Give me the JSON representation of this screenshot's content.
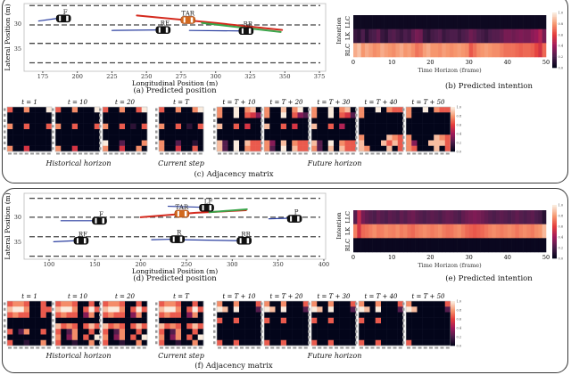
{
  "panels": [
    {
      "position_caption": "(a) Predicted position",
      "intention_caption": "(b) Predicted intention",
      "adjacency_caption": "(c) Adjacency matrix",
      "historical_label": "Historical horizon",
      "current_label": "Current step",
      "future_label": "Future horizon"
    },
    {
      "position_caption": "(d) Predicted position",
      "intention_caption": "(e) Predicted intention",
      "adjacency_caption": "(f) Adjacency matrix",
      "historical_label": "Historical horizon",
      "current_label": "Current step",
      "future_label": "Future horizon"
    }
  ],
  "colors": {
    "history": "#2b3fa0",
    "pred_red": "#d42a1e",
    "pred_orange": "#f06a1a",
    "pred_green": "#3aa54a",
    "target": "#d2691e",
    "lane": "#444444"
  },
  "chart_data": [
    {
      "type": "scatter",
      "title": "(a) Predicted position",
      "xlabel": "Longitudinal Position (m)",
      "ylabel": "Lateral Position (m)",
      "xlim": [
        161.5,
        379.5
      ],
      "ylim": [
        25.9,
        39.5
      ],
      "xticks": [
        "175",
        "200",
        "225",
        "250",
        "275",
        "300",
        "325",
        "350",
        "375"
      ],
      "yticks": [
        "30",
        "35"
      ],
      "lanes": [
        26.3,
        30.2,
        33.9,
        37.8
      ],
      "trajectories": [
        {
          "kind": "history",
          "points": [
            [
              172,
              29.4
            ],
            [
              185,
              28.9
            ]
          ]
        },
        {
          "kind": "history",
          "points": [
            [
              225,
              31.3
            ],
            [
              258,
              31.2
            ]
          ]
        },
        {
          "kind": "history",
          "points": [
            [
              281,
              31.3
            ],
            [
              318,
              31.4
            ]
          ]
        },
        {
          "kind": "pred_red",
          "points": [
            [
              243,
              28.3
            ],
            [
              300,
              29.8
            ],
            [
              348,
              31.2
            ]
          ]
        },
        {
          "kind": "pred_green",
          "points": [
            [
              290,
              29.8
            ],
            [
              347,
              31.6
            ]
          ]
        }
      ],
      "vehicles": [
        {
          "label": "F",
          "x": 190,
          "y": 28.9,
          "target": false
        },
        {
          "label": "TAR",
          "x": 280,
          "y": 29.2,
          "target": true
        },
        {
          "label": "RF",
          "x": 262,
          "y": 31.2,
          "target": false
        },
        {
          "label": "RR",
          "x": 322,
          "y": 31.4,
          "target": false
        }
      ]
    },
    {
      "type": "heatmap",
      "title": "(b) Predicted intention",
      "xlabel": "Time Horizon (frame)",
      "ylabel": "Intention",
      "rows": [
        "LLC",
        "LK",
        "RLC"
      ],
      "xticks": [
        "0",
        "10",
        "20",
        "30",
        "40",
        "50"
      ],
      "xlim": [
        0,
        50
      ],
      "colorbar_ticks": [
        "0.0",
        "0.2",
        "0.4",
        "0.6",
        "0.8",
        "1.0"
      ],
      "values": [
        [
          0.03,
          0.03,
          0.03,
          0.03,
          0.03,
          0.03,
          0.03,
          0.03,
          0.03,
          0.03,
          0.03,
          0.03,
          0.03,
          0.03,
          0.03,
          0.03,
          0.03,
          0.03,
          0.03,
          0.03,
          0.03,
          0.03,
          0.03,
          0.03,
          0.03,
          0.03,
          0.03,
          0.03,
          0.03,
          0.03,
          0.03,
          0.03,
          0.03,
          0.03,
          0.03,
          0.03,
          0.03,
          0.03,
          0.03,
          0.03,
          0.03,
          0.03,
          0.03,
          0.03,
          0.03,
          0.03,
          0.03,
          0.03,
          0.03,
          0.03
        ],
        [
          0.15,
          0.12,
          0.2,
          0.1,
          0.18,
          0.2,
          0.25,
          0.15,
          0.12,
          0.2,
          0.22,
          0.18,
          0.15,
          0.2,
          0.17,
          0.25,
          0.3,
          0.28,
          0.15,
          0.12,
          0.18,
          0.2,
          0.22,
          0.15,
          0.18,
          0.2,
          0.2,
          0.16,
          0.2,
          0.22,
          0.28,
          0.25,
          0.2,
          0.18,
          0.15,
          0.2,
          0.22,
          0.22,
          0.25,
          0.3,
          0.3,
          0.28,
          0.3,
          0.32,
          0.3,
          0.3,
          0.35,
          0.38,
          0.45,
          0.3
        ],
        [
          0.85,
          0.9,
          0.8,
          0.85,
          0.82,
          0.78,
          0.8,
          0.85,
          0.82,
          0.8,
          0.78,
          0.82,
          0.85,
          0.8,
          0.82,
          0.78,
          0.72,
          0.75,
          0.82,
          0.85,
          0.8,
          0.8,
          0.78,
          0.82,
          0.8,
          0.78,
          0.8,
          0.82,
          0.8,
          0.78,
          0.66,
          0.72,
          0.78,
          0.8,
          0.82,
          0.8,
          0.78,
          0.78,
          0.75,
          0.72,
          0.72,
          0.72,
          0.7,
          0.68,
          0.7,
          0.7,
          0.68,
          0.62,
          0.55,
          0.7
        ]
      ]
    },
    {
      "type": "heatmap",
      "title": "(c) Adjacency matrix",
      "colorbar_ticks": [
        "0.0",
        "0.2",
        "0.4",
        "0.6",
        "0.8",
        "1.0"
      ],
      "matrices": [
        {
          "title": "t = 1",
          "rows": [
            "60070009",
            "00000000",
            "00000000",
            "70060006",
            "00000000",
            "00000000",
            "00000000",
            "70050000"
          ]
        },
        {
          "title": "t = 10",
          "rows": [
            "60070009",
            "00000000",
            "00000000",
            "70060006",
            "00000000",
            "00000000",
            "00000000",
            "70050000"
          ]
        },
        {
          "title": "t = 20",
          "rows": [
            "60070069",
            "00000000",
            "00000000",
            "70060106",
            "00000000",
            "00000000",
            "90020007",
            "70050070"
          ]
        },
        {
          "title": "t = T",
          "rows": [
            "60070079",
            "00000000",
            "00000000",
            "70060106",
            "00000000",
            "00000000",
            "70020010",
            "70050060"
          ]
        },
        {
          "title": "t = T + 10",
          "rows": [
            "70090780",
            "70090653",
            "00000000",
            "80060500",
            "00000000",
            "00000000",
            "82090866",
            "82090766"
          ]
        },
        {
          "title": "t = T + 20",
          "rows": [
            "70080790",
            "70090632",
            "00000000",
            "80060500",
            "00000000",
            "00000000",
            "73080766",
            "72090866"
          ]
        },
        {
          "title": "t = T + 30",
          "rows": [
            "70090780",
            "70090652",
            "00000000",
            "80060400",
            "00000000",
            "00000000",
            "82090766",
            "72080866"
          ]
        },
        {
          "title": "t = T + 40",
          "rows": [
            "70090766",
            "70000000",
            "00000000",
            "00000000",
            "00000000",
            "70000876",
            "80008686",
            "87000806"
          ]
        },
        {
          "title": "t = T + 50",
          "rows": [
            "70090766",
            "70000000",
            "00000000",
            "00000000",
            "00000000",
            "70000876",
            "73008886",
            "76000806"
          ]
        }
      ]
    },
    {
      "type": "scatter",
      "title": "(d) Predicted position",
      "xlabel": "Longitudinal Position (m)",
      "ylabel": "Lateral Position (m)",
      "xlim": [
        72.7,
        402
      ],
      "ylim": [
        25.2,
        38.4
      ],
      "xticks": [
        "100",
        "150",
        "200",
        "250",
        "300",
        "350",
        "400"
      ],
      "yticks": [
        "30",
        "35"
      ],
      "lanes": [
        26.2,
        30.0,
        33.9,
        37.8
      ],
      "trajectories": [
        {
          "kind": "history",
          "points": [
            [
              230,
              27.8
            ],
            [
              267,
              28.0
            ]
          ]
        },
        {
          "kind": "history",
          "points": [
            [
              113,
              30.7
            ],
            [
              150,
              30.7
            ]
          ]
        },
        {
          "kind": "history",
          "points": [
            [
              340,
              30.3
            ],
            [
              362,
              30.2
            ]
          ]
        },
        {
          "kind": "history",
          "points": [
            [
              105,
              34.9
            ],
            [
              128,
              34.7
            ]
          ]
        },
        {
          "kind": "history",
          "points": [
            [
              212,
              34.5
            ],
            [
              235,
              34.4
            ]
          ]
        },
        {
          "kind": "history",
          "points": [
            [
              245,
              34.5
            ],
            [
              308,
              34.7
            ]
          ]
        },
        {
          "kind": "pred_red",
          "points": [
            [
              200,
              30.0
            ],
            [
              260,
              29.1
            ],
            [
              315,
              28.6
            ]
          ]
        },
        {
          "kind": "pred_green",
          "points": [
            [
              275,
              29.0
            ],
            [
              316,
              28.4
            ]
          ]
        }
      ],
      "vehicles": [
        {
          "label": "LF",
          "x": 272,
          "y": 28.1,
          "target": false
        },
        {
          "label": "TAR",
          "x": 245,
          "y": 29.3,
          "target": true
        },
        {
          "label": "F",
          "x": 155,
          "y": 30.7,
          "target": false
        },
        {
          "label": "P",
          "x": 368,
          "y": 30.3,
          "target": false
        },
        {
          "label": "RF",
          "x": 135,
          "y": 34.7,
          "target": false
        },
        {
          "label": "R",
          "x": 240,
          "y": 34.4,
          "target": false
        },
        {
          "label": "RR",
          "x": 313,
          "y": 34.7,
          "target": false
        }
      ]
    },
    {
      "type": "heatmap",
      "title": "(e) Predicted intention",
      "xlabel": "Time Horizon (frame)",
      "ylabel": "Intention",
      "rows": [
        "LLC",
        "LK",
        "RLC"
      ],
      "xticks": [
        "0",
        "10",
        "20",
        "30",
        "40",
        "50"
      ],
      "xlim": [
        0,
        50
      ],
      "colorbar_ticks": [
        "0.0",
        "0.2",
        "0.4",
        "0.6",
        "0.8",
        "1.0"
      ],
      "values": [
        [
          0.22,
          0.5,
          0.3,
          0.25,
          0.22,
          0.2,
          0.25,
          0.22,
          0.2,
          0.24,
          0.22,
          0.2,
          0.25,
          0.22,
          0.26,
          0.28,
          0.24,
          0.22,
          0.2,
          0.22,
          0.24,
          0.22,
          0.2,
          0.24,
          0.26,
          0.25,
          0.22,
          0.2,
          0.25,
          0.28,
          0.3,
          0.32,
          0.3,
          0.28,
          0.25,
          0.22,
          0.2,
          0.22,
          0.24,
          0.22,
          0.2,
          0.22,
          0.25,
          0.22,
          0.2,
          0.22,
          0.24,
          0.2,
          0.18,
          0.1
        ],
        [
          0.75,
          0.55,
          0.7,
          0.72,
          0.75,
          0.78,
          0.74,
          0.75,
          0.78,
          0.76,
          0.75,
          0.78,
          0.74,
          0.76,
          0.72,
          0.7,
          0.74,
          0.76,
          0.78,
          0.76,
          0.74,
          0.76,
          0.78,
          0.74,
          0.72,
          0.73,
          0.76,
          0.78,
          0.74,
          0.7,
          0.68,
          0.66,
          0.68,
          0.7,
          0.73,
          0.76,
          0.78,
          0.76,
          0.74,
          0.76,
          0.78,
          0.76,
          0.73,
          0.76,
          0.78,
          0.76,
          0.74,
          0.78,
          0.8,
          0.88
        ],
        [
          0.02,
          0.02,
          0.02,
          0.02,
          0.02,
          0.02,
          0.02,
          0.02,
          0.02,
          0.02,
          0.02,
          0.02,
          0.02,
          0.02,
          0.02,
          0.02,
          0.02,
          0.02,
          0.02,
          0.02,
          0.02,
          0.02,
          0.02,
          0.02,
          0.02,
          0.02,
          0.02,
          0.02,
          0.02,
          0.02,
          0.02,
          0.02,
          0.02,
          0.02,
          0.02,
          0.02,
          0.02,
          0.02,
          0.02,
          0.02,
          0.02,
          0.02,
          0.02,
          0.02,
          0.02,
          0.02,
          0.02,
          0.02,
          0.02,
          0.02
        ]
      ]
    },
    {
      "type": "heatmap",
      "title": "(f) Adjacency matrix",
      "colorbar_ticks": [
        "0.0",
        "0.2",
        "0.4",
        "0.6",
        "0.8",
        "1.0"
      ],
      "matrices": [
        {
          "title": "t = 1",
          "rows": [
            "67760060",
            "89970066",
            "67660060",
            "00000000",
            "00000000",
            "60270060",
            "00000000",
            "60010070"
          ]
        },
        {
          "title": "t = 10",
          "rows": [
            "67760060",
            "89970696",
            "67660370",
            "00000000",
            "86760686",
            "60270060",
            "70370609",
            "60010070"
          ]
        },
        {
          "title": "t = 20",
          "rows": [
            "67760060",
            "89970696",
            "67660370",
            "00000000",
            "86760686",
            "60270060",
            "70370609",
            "60010070"
          ]
        },
        {
          "title": "t = T",
          "rows": [
            "67760060",
            "89970696",
            "67660370",
            "00000000",
            "86760686",
            "60270060",
            "70370609",
            "60010070"
          ]
        },
        {
          "title": "t = T + 10",
          "rows": [
            "70070006",
            "98090002",
            "00000000",
            "60060000",
            "00000000",
            "00000000",
            "00000000",
            "60060000"
          ]
        },
        {
          "title": "t = T + 20",
          "rows": [
            "70070006",
            "98090002",
            "00000000",
            "60060000",
            "00000000",
            "00000000",
            "00000000",
            "60060000"
          ]
        },
        {
          "title": "t = T + 30",
          "rows": [
            "70070006",
            "98090002",
            "00000000",
            "60060000",
            "00000000",
            "00000000",
            "00000000",
            "60060000"
          ]
        },
        {
          "title": "t = T + 40",
          "rows": [
            "70070006",
            "98090002",
            "00000000",
            "60060000",
            "00000000",
            "00000000",
            "00000000",
            "60060000"
          ]
        },
        {
          "title": "t = T + 50",
          "rows": [
            "70000006",
            "98000002",
            "00000000",
            "00000000",
            "00000000",
            "00000000",
            "00000000",
            "60000000"
          ]
        }
      ]
    }
  ]
}
